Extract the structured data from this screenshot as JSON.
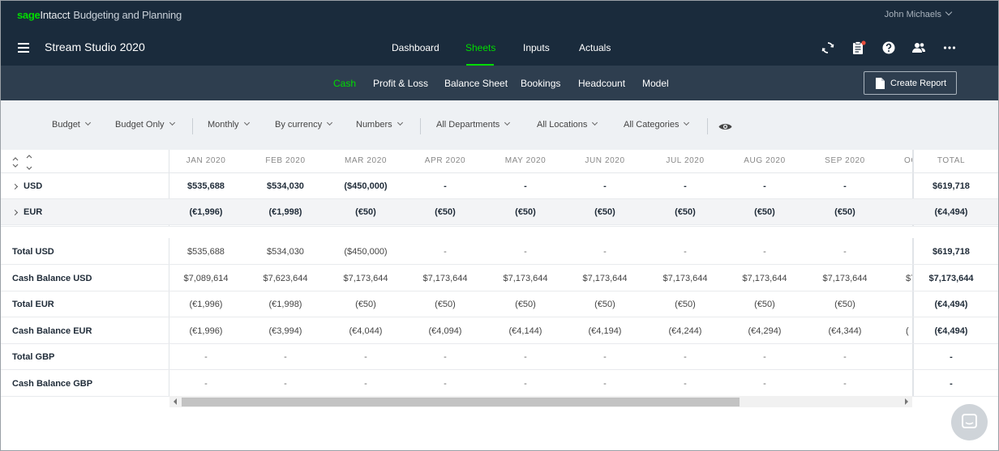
{
  "brand": {
    "sage": "sage",
    "intacct": "Intacct",
    "product": "Budgeting and Planning"
  },
  "user": {
    "name": "John Michaels"
  },
  "app": {
    "title": "Stream Studio 2020"
  },
  "nav": {
    "tabs": [
      "Dashboard",
      "Sheets",
      "Inputs",
      "Actuals"
    ],
    "active": "Sheets"
  },
  "nav_icons": [
    "sync-icon",
    "clipboard-notification-icon",
    "help-icon",
    "people-icon",
    "more-icon"
  ],
  "subnav": {
    "tabs": [
      "Cash",
      "Profit & Loss",
      "Balance Sheet",
      "Bookings",
      "Headcount",
      "Model"
    ],
    "active": "Cash",
    "create_report": "Create Report"
  },
  "filters": [
    "Budget",
    "Budget Only",
    "Monthly",
    "By currency",
    "Numbers",
    "All Departments",
    "All Locations",
    "All Categories"
  ],
  "table": {
    "columns": [
      "JAN 2020",
      "FEB 2020",
      "MAR 2020",
      "APR 2020",
      "MAY 2020",
      "JUN 2020",
      "JUL 2020",
      "AUG 2020",
      "SEP 2020",
      "OC"
    ],
    "total_label": "TOTAL",
    "groups": [
      {
        "label": "USD",
        "values": [
          "$535,688",
          "$534,030",
          "($450,000)",
          "-",
          "-",
          "-",
          "-",
          "-",
          "-"
        ],
        "total": "$619,718"
      },
      {
        "label": "EUR",
        "values": [
          "(€1,996)",
          "(€1,998)",
          "(€50)",
          "(€50)",
          "(€50)",
          "(€50)",
          "(€50)",
          "(€50)",
          "(€50)"
        ],
        "total": "(€4,494)"
      }
    ],
    "summary": [
      {
        "label": "Total USD",
        "values": [
          "$535,688",
          "$534,030",
          "($450,000)",
          "-",
          "-",
          "-",
          "-",
          "-",
          "-"
        ],
        "partial": "",
        "total": "$619,718"
      },
      {
        "label": "Cash Balance USD",
        "values": [
          "$7,089,614",
          "$7,623,644",
          "$7,173,644",
          "$7,173,644",
          "$7,173,644",
          "$7,173,644",
          "$7,173,644",
          "$7,173,644",
          "$7,173,644"
        ],
        "partial": "$7",
        "total": "$7,173,644"
      },
      {
        "label": "Total EUR",
        "values": [
          "(€1,996)",
          "(€1,998)",
          "(€50)",
          "(€50)",
          "(€50)",
          "(€50)",
          "(€50)",
          "(€50)",
          "(€50)"
        ],
        "partial": "",
        "total": "(€4,494)"
      },
      {
        "label": "Cash Balance EUR",
        "values": [
          "(€1,996)",
          "(€3,994)",
          "(€4,044)",
          "(€4,094)",
          "(€4,144)",
          "(€4,194)",
          "(€4,244)",
          "(€4,294)",
          "(€4,344)"
        ],
        "partial": "(",
        "total": "(€4,494)"
      },
      {
        "label": "Total GBP",
        "values": [
          "-",
          "-",
          "-",
          "-",
          "-",
          "-",
          "-",
          "-",
          "-"
        ],
        "partial": "",
        "total": "-"
      },
      {
        "label": "Cash Balance GBP",
        "values": [
          "-",
          "-",
          "-",
          "-",
          "-",
          "-",
          "-",
          "-",
          "-"
        ],
        "partial": "",
        "total": "-"
      }
    ]
  },
  "colors": {
    "nav_bg": "#1a2b3c",
    "subnav_bg": "#2e3e4f",
    "accent": "#00dc00",
    "filter_bg": "#eef1f4"
  }
}
